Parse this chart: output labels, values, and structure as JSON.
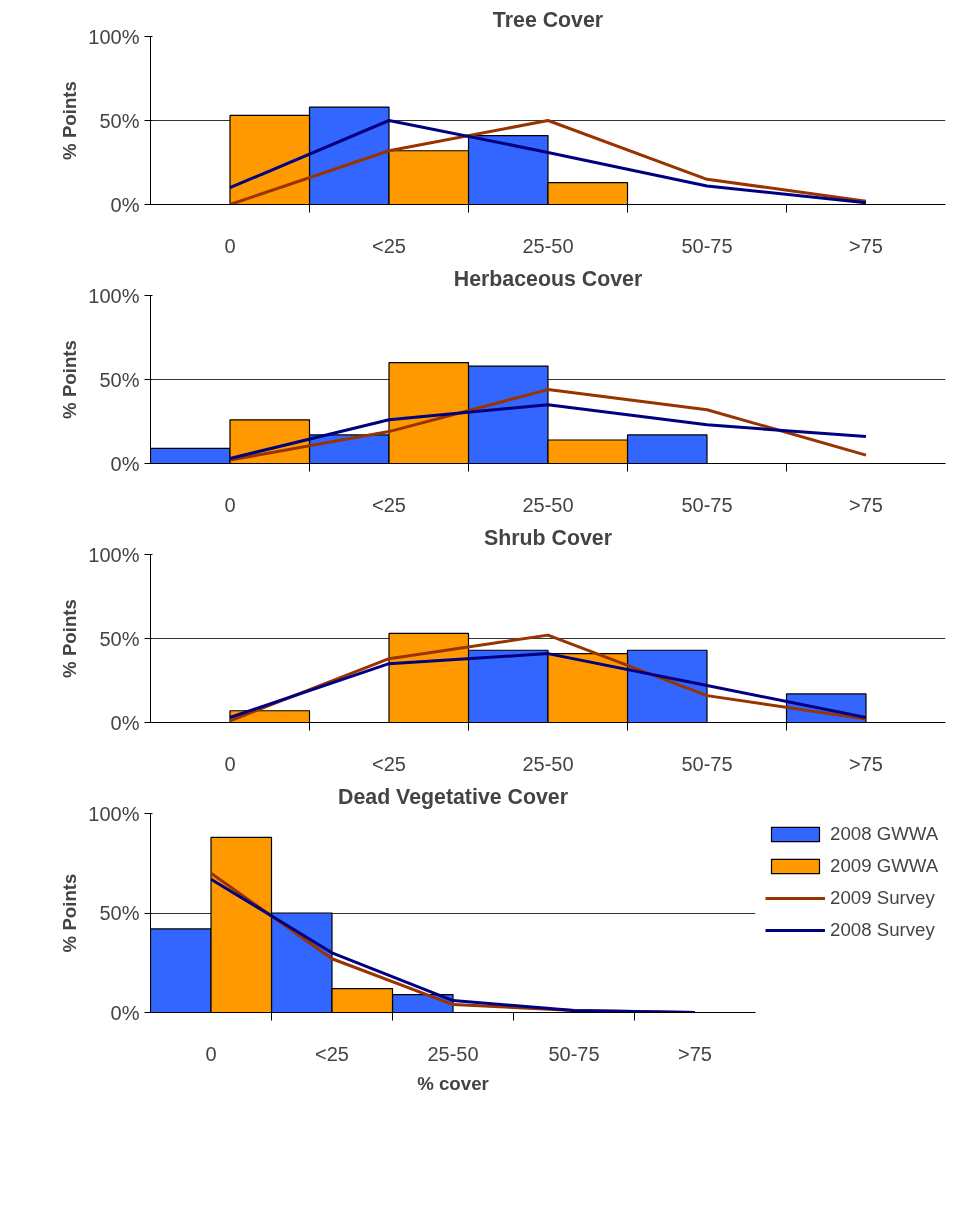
{
  "chart_data": [
    {
      "type": "bar",
      "title": "Tree Cover",
      "ylabel": "% Points",
      "categories": [
        "0",
        "<25",
        "25-50",
        "50-75",
        ">75"
      ],
      "ylim": [
        0,
        100
      ],
      "yticks": [
        {
          "value": 0,
          "label": "0%"
        },
        {
          "value": 50,
          "label": "50%"
        },
        {
          "value": 100,
          "label": "100%"
        }
      ],
      "grid": "y",
      "legend": false,
      "series": [
        {
          "color": "#3366ff",
          "values": [
            null,
            58,
            41,
            null,
            null
          ]
        },
        {
          "color": "#ff9900",
          "values": [
            53,
            32,
            13,
            null,
            null
          ]
        },
        {
          "type": "line",
          "color": "#993300",
          "values": [
            0,
            32,
            50,
            15,
            2
          ]
        },
        {
          "type": "line",
          "color": "#000080",
          "values": [
            10,
            50,
            31,
            11,
            1
          ]
        }
      ]
    },
    {
      "type": "bar",
      "title": "Herbaceous Cover",
      "ylabel": "% Points",
      "categories": [
        "0",
        "<25",
        "25-50",
        "50-75",
        ">75"
      ],
      "ylim": [
        0,
        100
      ],
      "yticks": [
        {
          "value": 0,
          "label": "0%"
        },
        {
          "value": 50,
          "label": "50%"
        },
        {
          "value": 100,
          "label": "100%"
        }
      ],
      "grid": "y",
      "legend": false,
      "series": [
        {
          "color": "#3366ff",
          "values": [
            9,
            17,
            58,
            17,
            null
          ]
        },
        {
          "color": "#ff9900",
          "values": [
            26,
            60,
            14,
            null,
            null
          ]
        },
        {
          "type": "line",
          "color": "#993300",
          "values": [
            2,
            19,
            44,
            32,
            5
          ]
        },
        {
          "type": "line",
          "color": "#000080",
          "values": [
            3,
            26,
            35,
            23,
            16
          ]
        }
      ]
    },
    {
      "type": "bar",
      "title": "Shrub Cover",
      "ylabel": "% Points",
      "categories": [
        "0",
        "<25",
        "25-50",
        "50-75",
        ">75"
      ],
      "ylim": [
        0,
        100
      ],
      "yticks": [
        {
          "value": 0,
          "label": "0%"
        },
        {
          "value": 50,
          "label": "50%"
        },
        {
          "value": 100,
          "label": "100%"
        }
      ],
      "grid": "y",
      "legend": false,
      "series": [
        {
          "color": "#3366ff",
          "values": [
            null,
            null,
            43,
            43,
            17
          ]
        },
        {
          "color": "#ff9900",
          "values": [
            7,
            53,
            41,
            null,
            null
          ]
        },
        {
          "type": "line",
          "color": "#993300",
          "values": [
            1,
            38,
            52,
            16,
            2
          ]
        },
        {
          "type": "line",
          "color": "#000080",
          "values": [
            3,
            35,
            41,
            22,
            3
          ]
        }
      ]
    },
    {
      "type": "bar",
      "title": "Dead Vegetative Cover",
      "ylabel": "% Points",
      "xlabel": "% cover",
      "categories": [
        "0",
        "<25",
        "25-50",
        "50-75",
        ">75"
      ],
      "ylim": [
        0,
        100
      ],
      "yticks": [
        {
          "value": 0,
          "label": "0%"
        },
        {
          "value": 50,
          "label": "50%"
        },
        {
          "value": 100,
          "label": "100%"
        }
      ],
      "grid": "y",
      "legend": "right",
      "series": [
        {
          "name": "2008 GWWA",
          "color": "#3366ff",
          "values": [
            42,
            50,
            9,
            null,
            null
          ]
        },
        {
          "name": "2009 GWWA",
          "color": "#ff9900",
          "values": [
            88,
            12,
            null,
            null,
            null
          ]
        },
        {
          "name": "2009 Survey",
          "type": "line",
          "color": "#993300",
          "values": [
            70,
            27,
            4,
            1,
            0
          ]
        },
        {
          "name": "2008 Survey",
          "type": "line",
          "color": "#000080",
          "values": [
            67,
            30,
            6,
            1,
            0
          ]
        }
      ]
    }
  ]
}
